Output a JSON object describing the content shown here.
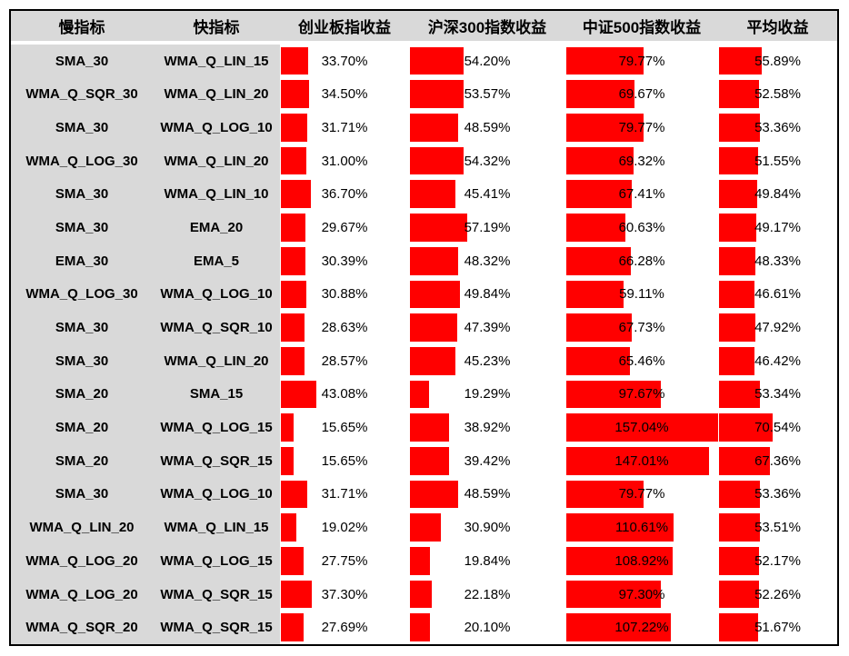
{
  "colors": {
    "bar_fill": "#ff0000",
    "header_bg": "#d9d9d9",
    "label_bg": "#d9d9d9",
    "border": "#000000",
    "text": "#000000"
  },
  "table": {
    "headers": [
      "慢指标",
      "快指标",
      "创业板指收益",
      "沪深300指数收益",
      "中证500指数收益",
      "平均收益"
    ]
  },
  "chart_data": {
    "type": "table",
    "subtype": "table-with-data-bars",
    "columns": [
      "慢指标",
      "快指标",
      "创业板指收益",
      "沪深300指数收益",
      "中证500指数收益",
      "平均收益"
    ],
    "value_columns": [
      "创业板指收益",
      "沪深300指数收益",
      "中证500指数收益",
      "平均收益"
    ],
    "value_unit": "%",
    "bar_scale_max": 157.04,
    "rows": [
      {
        "slow": "SMA_30",
        "fast": "WMA_Q_LIN_15",
        "values": [
          33.7,
          54.2,
          79.77,
          55.89
        ]
      },
      {
        "slow": "WMA_Q_SQR_30",
        "fast": "WMA_Q_LIN_20",
        "values": [
          34.5,
          53.57,
          69.67,
          52.58
        ]
      },
      {
        "slow": "SMA_30",
        "fast": "WMA_Q_LOG_10",
        "values": [
          31.71,
          48.59,
          79.77,
          53.36
        ]
      },
      {
        "slow": "WMA_Q_LOG_30",
        "fast": "WMA_Q_LIN_20",
        "values": [
          31.0,
          54.32,
          69.32,
          51.55
        ]
      },
      {
        "slow": "SMA_30",
        "fast": "WMA_Q_LIN_10",
        "values": [
          36.7,
          45.41,
          67.41,
          49.84
        ]
      },
      {
        "slow": "SMA_30",
        "fast": "EMA_20",
        "values": [
          29.67,
          57.19,
          60.63,
          49.17
        ]
      },
      {
        "slow": "EMA_30",
        "fast": "EMA_5",
        "values": [
          30.39,
          48.32,
          66.28,
          48.33
        ]
      },
      {
        "slow": "WMA_Q_LOG_30",
        "fast": "WMA_Q_LOG_10",
        "values": [
          30.88,
          49.84,
          59.11,
          46.61
        ]
      },
      {
        "slow": "SMA_30",
        "fast": "WMA_Q_SQR_10",
        "values": [
          28.63,
          47.39,
          67.73,
          47.92
        ]
      },
      {
        "slow": "SMA_30",
        "fast": "WMA_Q_LIN_20",
        "values": [
          28.57,
          45.23,
          65.46,
          46.42
        ]
      },
      {
        "slow": "SMA_20",
        "fast": "SMA_15",
        "values": [
          43.08,
          19.29,
          97.67,
          53.34
        ]
      },
      {
        "slow": "SMA_20",
        "fast": "WMA_Q_LOG_15",
        "values": [
          15.65,
          38.92,
          157.04,
          70.54
        ]
      },
      {
        "slow": "SMA_20",
        "fast": "WMA_Q_SQR_15",
        "values": [
          15.65,
          39.42,
          147.01,
          67.36
        ]
      },
      {
        "slow": "SMA_30",
        "fast": "WMA_Q_LOG_10",
        "values": [
          31.71,
          48.59,
          79.77,
          53.36
        ]
      },
      {
        "slow": "WMA_Q_LIN_20",
        "fast": "WMA_Q_LIN_15",
        "values": [
          19.02,
          30.9,
          110.61,
          53.51
        ]
      },
      {
        "slow": "WMA_Q_LOG_20",
        "fast": "WMA_Q_LOG_15",
        "values": [
          27.75,
          19.84,
          108.92,
          52.17
        ]
      },
      {
        "slow": "WMA_Q_LOG_20",
        "fast": "WMA_Q_SQR_15",
        "values": [
          37.3,
          22.18,
          97.3,
          52.26
        ]
      },
      {
        "slow": "WMA_Q_SQR_20",
        "fast": "WMA_Q_SQR_15",
        "values": [
          27.69,
          20.1,
          107.22,
          51.67
        ]
      }
    ]
  }
}
